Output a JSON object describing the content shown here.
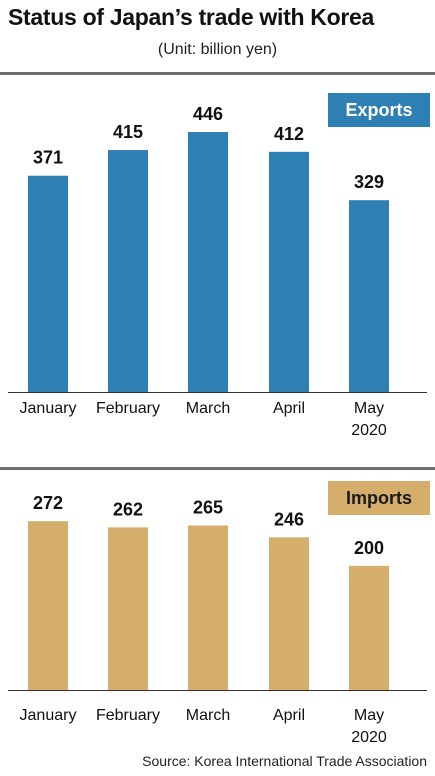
{
  "title": "Status of Japan’s trade with Korea",
  "unit": "(Unit: billion yen)",
  "source": "Source: Korea International Trade Association",
  "chart_data": [
    {
      "type": "bar",
      "title": "Exports",
      "color": "#2e7fb4",
      "categories": [
        "January",
        "February",
        "March",
        "April",
        "May"
      ],
      "year_label": "2020",
      "values": [
        371,
        415,
        446,
        412,
        329
      ],
      "ylim": [
        0,
        470
      ],
      "grid": false
    },
    {
      "type": "bar",
      "title": "Imports",
      "color": "#d6ae6c",
      "categories": [
        "January",
        "February",
        "March",
        "April",
        "May"
      ],
      "year_label": "2020",
      "values": [
        272,
        262,
        265,
        246,
        200
      ],
      "ylim": [
        0,
        290
      ],
      "grid": false
    }
  ]
}
